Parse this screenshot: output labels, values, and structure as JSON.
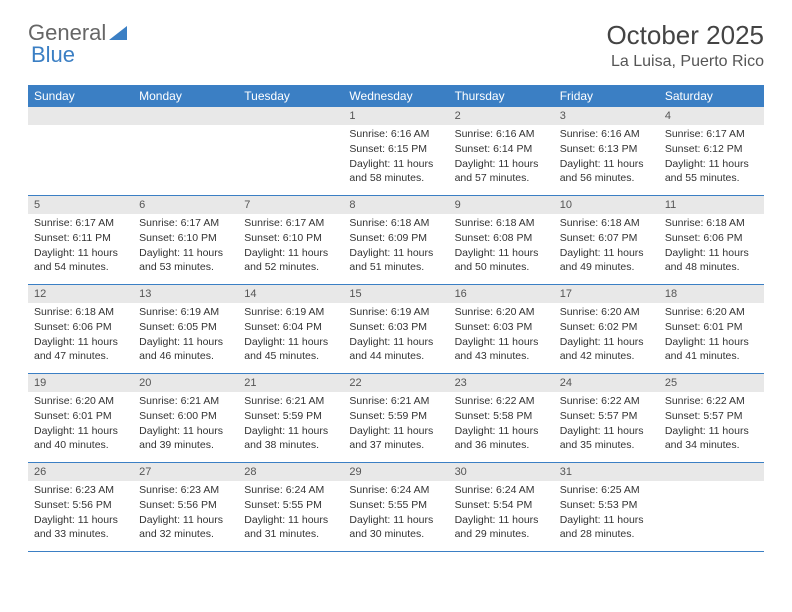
{
  "logo": {
    "part1": "General",
    "part2": "Blue"
  },
  "title": "October 2025",
  "location": "La Luisa, Puerto Rico",
  "colors": {
    "header_bg": "#3b7fc4",
    "header_text": "#ffffff",
    "daynum_bg": "#e8e8e8",
    "border": "#3b7fc4",
    "text": "#333333",
    "logo_gray": "#666666",
    "logo_blue": "#3b7fc4"
  },
  "day_labels": [
    "Sunday",
    "Monday",
    "Tuesday",
    "Wednesday",
    "Thursday",
    "Friday",
    "Saturday"
  ],
  "weeks": [
    [
      {
        "empty": true
      },
      {
        "empty": true
      },
      {
        "empty": true
      },
      {
        "n": "1",
        "sr": "Sunrise: 6:16 AM",
        "ss": "Sunset: 6:15 PM",
        "d1": "Daylight: 11 hours",
        "d2": "and 58 minutes."
      },
      {
        "n": "2",
        "sr": "Sunrise: 6:16 AM",
        "ss": "Sunset: 6:14 PM",
        "d1": "Daylight: 11 hours",
        "d2": "and 57 minutes."
      },
      {
        "n": "3",
        "sr": "Sunrise: 6:16 AM",
        "ss": "Sunset: 6:13 PM",
        "d1": "Daylight: 11 hours",
        "d2": "and 56 minutes."
      },
      {
        "n": "4",
        "sr": "Sunrise: 6:17 AM",
        "ss": "Sunset: 6:12 PM",
        "d1": "Daylight: 11 hours",
        "d2": "and 55 minutes."
      }
    ],
    [
      {
        "n": "5",
        "sr": "Sunrise: 6:17 AM",
        "ss": "Sunset: 6:11 PM",
        "d1": "Daylight: 11 hours",
        "d2": "and 54 minutes."
      },
      {
        "n": "6",
        "sr": "Sunrise: 6:17 AM",
        "ss": "Sunset: 6:10 PM",
        "d1": "Daylight: 11 hours",
        "d2": "and 53 minutes."
      },
      {
        "n": "7",
        "sr": "Sunrise: 6:17 AM",
        "ss": "Sunset: 6:10 PM",
        "d1": "Daylight: 11 hours",
        "d2": "and 52 minutes."
      },
      {
        "n": "8",
        "sr": "Sunrise: 6:18 AM",
        "ss": "Sunset: 6:09 PM",
        "d1": "Daylight: 11 hours",
        "d2": "and 51 minutes."
      },
      {
        "n": "9",
        "sr": "Sunrise: 6:18 AM",
        "ss": "Sunset: 6:08 PM",
        "d1": "Daylight: 11 hours",
        "d2": "and 50 minutes."
      },
      {
        "n": "10",
        "sr": "Sunrise: 6:18 AM",
        "ss": "Sunset: 6:07 PM",
        "d1": "Daylight: 11 hours",
        "d2": "and 49 minutes."
      },
      {
        "n": "11",
        "sr": "Sunrise: 6:18 AM",
        "ss": "Sunset: 6:06 PM",
        "d1": "Daylight: 11 hours",
        "d2": "and 48 minutes."
      }
    ],
    [
      {
        "n": "12",
        "sr": "Sunrise: 6:18 AM",
        "ss": "Sunset: 6:06 PM",
        "d1": "Daylight: 11 hours",
        "d2": "and 47 minutes."
      },
      {
        "n": "13",
        "sr": "Sunrise: 6:19 AM",
        "ss": "Sunset: 6:05 PM",
        "d1": "Daylight: 11 hours",
        "d2": "and 46 minutes."
      },
      {
        "n": "14",
        "sr": "Sunrise: 6:19 AM",
        "ss": "Sunset: 6:04 PM",
        "d1": "Daylight: 11 hours",
        "d2": "and 45 minutes."
      },
      {
        "n": "15",
        "sr": "Sunrise: 6:19 AM",
        "ss": "Sunset: 6:03 PM",
        "d1": "Daylight: 11 hours",
        "d2": "and 44 minutes."
      },
      {
        "n": "16",
        "sr": "Sunrise: 6:20 AM",
        "ss": "Sunset: 6:03 PM",
        "d1": "Daylight: 11 hours",
        "d2": "and 43 minutes."
      },
      {
        "n": "17",
        "sr": "Sunrise: 6:20 AM",
        "ss": "Sunset: 6:02 PM",
        "d1": "Daylight: 11 hours",
        "d2": "and 42 minutes."
      },
      {
        "n": "18",
        "sr": "Sunrise: 6:20 AM",
        "ss": "Sunset: 6:01 PM",
        "d1": "Daylight: 11 hours",
        "d2": "and 41 minutes."
      }
    ],
    [
      {
        "n": "19",
        "sr": "Sunrise: 6:20 AM",
        "ss": "Sunset: 6:01 PM",
        "d1": "Daylight: 11 hours",
        "d2": "and 40 minutes."
      },
      {
        "n": "20",
        "sr": "Sunrise: 6:21 AM",
        "ss": "Sunset: 6:00 PM",
        "d1": "Daylight: 11 hours",
        "d2": "and 39 minutes."
      },
      {
        "n": "21",
        "sr": "Sunrise: 6:21 AM",
        "ss": "Sunset: 5:59 PM",
        "d1": "Daylight: 11 hours",
        "d2": "and 38 minutes."
      },
      {
        "n": "22",
        "sr": "Sunrise: 6:21 AM",
        "ss": "Sunset: 5:59 PM",
        "d1": "Daylight: 11 hours",
        "d2": "and 37 minutes."
      },
      {
        "n": "23",
        "sr": "Sunrise: 6:22 AM",
        "ss": "Sunset: 5:58 PM",
        "d1": "Daylight: 11 hours",
        "d2": "and 36 minutes."
      },
      {
        "n": "24",
        "sr": "Sunrise: 6:22 AM",
        "ss": "Sunset: 5:57 PM",
        "d1": "Daylight: 11 hours",
        "d2": "and 35 minutes."
      },
      {
        "n": "25",
        "sr": "Sunrise: 6:22 AM",
        "ss": "Sunset: 5:57 PM",
        "d1": "Daylight: 11 hours",
        "d2": "and 34 minutes."
      }
    ],
    [
      {
        "n": "26",
        "sr": "Sunrise: 6:23 AM",
        "ss": "Sunset: 5:56 PM",
        "d1": "Daylight: 11 hours",
        "d2": "and 33 minutes."
      },
      {
        "n": "27",
        "sr": "Sunrise: 6:23 AM",
        "ss": "Sunset: 5:56 PM",
        "d1": "Daylight: 11 hours",
        "d2": "and 32 minutes."
      },
      {
        "n": "28",
        "sr": "Sunrise: 6:24 AM",
        "ss": "Sunset: 5:55 PM",
        "d1": "Daylight: 11 hours",
        "d2": "and 31 minutes."
      },
      {
        "n": "29",
        "sr": "Sunrise: 6:24 AM",
        "ss": "Sunset: 5:55 PM",
        "d1": "Daylight: 11 hours",
        "d2": "and 30 minutes."
      },
      {
        "n": "30",
        "sr": "Sunrise: 6:24 AM",
        "ss": "Sunset: 5:54 PM",
        "d1": "Daylight: 11 hours",
        "d2": "and 29 minutes."
      },
      {
        "n": "31",
        "sr": "Sunrise: 6:25 AM",
        "ss": "Sunset: 5:53 PM",
        "d1": "Daylight: 11 hours",
        "d2": "and 28 minutes."
      },
      {
        "empty": true
      }
    ]
  ]
}
